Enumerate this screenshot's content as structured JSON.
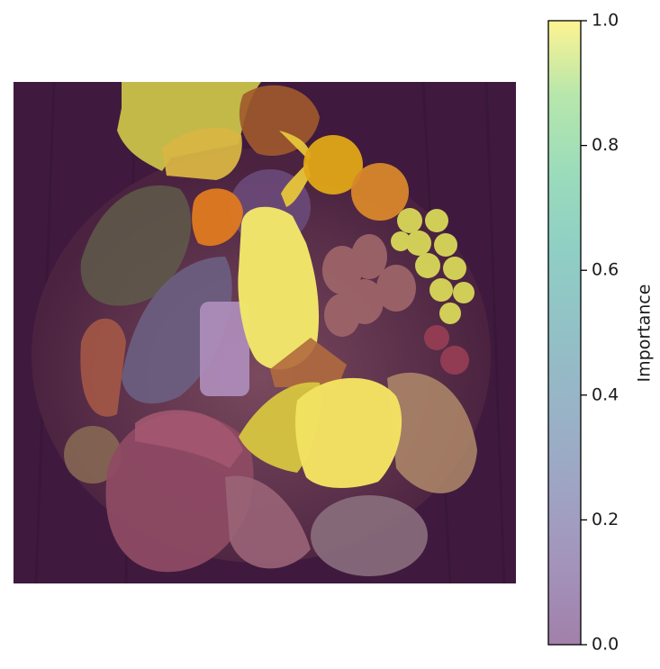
{
  "chart_data": {
    "type": "heatmap",
    "title": "",
    "colorbar": {
      "label": "Importance",
      "range": [
        0.0,
        1.0
      ],
      "ticks": [
        0.0,
        0.2,
        0.4,
        0.6,
        0.8,
        1.0
      ],
      "tick_labels": [
        "0.0",
        "0.2",
        "0.4",
        "0.6",
        "0.8",
        "1.0"
      ],
      "colormap": "viridis",
      "alpha": 0.5,
      "placement": "right"
    },
    "image": {
      "subject": "arrangement of assorted foods",
      "axes_visible": false
    },
    "colors": {
      "low": "#440154",
      "mid": "#21918c",
      "high": "#fde725"
    }
  }
}
